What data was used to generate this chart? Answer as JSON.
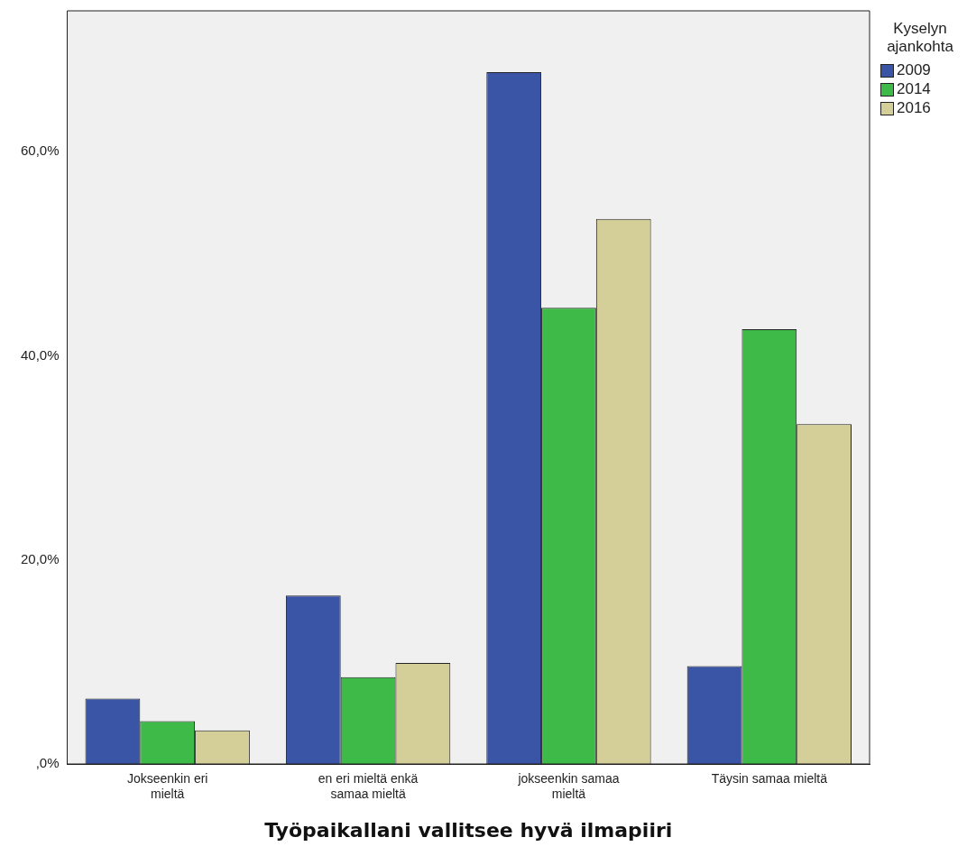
{
  "chart_data": {
    "type": "bar",
    "xlabel": "Työpaikallani vallitsee hyvä ilmapiiri",
    "legend_title": "Kyselyn ajankohta",
    "categories": [
      "Jokseenkin eri mieltä",
      "en eri mieltä enkä samaa mieltä",
      "jokseenkin samaa mieltä",
      "Täysin samaa mieltä"
    ],
    "series": [
      {
        "name": "2009",
        "color": "#3b55a6",
        "values": [
          6.4,
          16.5,
          67.8,
          9.6
        ]
      },
      {
        "name": "2014",
        "color": "#3dba48",
        "values": [
          4.2,
          8.5,
          44.7,
          42.6
        ]
      },
      {
        "name": "2016",
        "color": "#d4cf98",
        "values": [
          3.3,
          9.9,
          53.4,
          33.3
        ]
      }
    ],
    "ylim": [
      0,
      73.8
    ],
    "yticks": [
      {
        "value": 0,
        "label": ",0%"
      },
      {
        "value": 20,
        "label": "20,0%"
      },
      {
        "value": 40,
        "label": "40,0%"
      },
      {
        "value": 60,
        "label": "60,0%"
      }
    ],
    "grid": false,
    "legend": "top right"
  }
}
